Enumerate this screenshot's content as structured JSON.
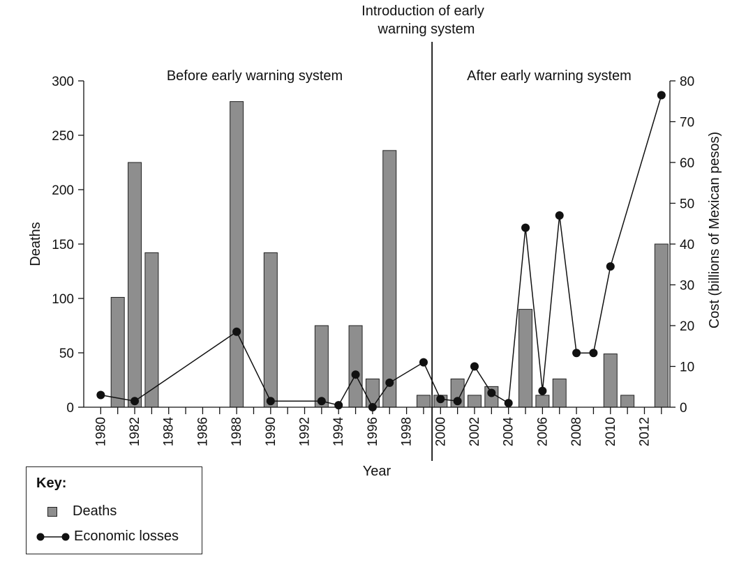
{
  "chart_data": {
    "type": "bar+line",
    "x": [
      1980,
      1981,
      1982,
      1983,
      1984,
      1985,
      1986,
      1987,
      1988,
      1989,
      1990,
      1991,
      1992,
      1993,
      1994,
      1995,
      1996,
      1997,
      1998,
      1999,
      2000,
      2001,
      2002,
      2003,
      2004,
      2005,
      2006,
      2007,
      2008,
      2009,
      2010,
      2011,
      2012,
      2013
    ],
    "x_tick_labels": [
      "1980",
      "1982",
      "1984",
      "1986",
      "1988",
      "1990",
      "1992",
      "1994",
      "1996",
      "1998",
      "2000",
      "2002",
      "2004",
      "2006",
      "2008",
      "2010",
      "2012"
    ],
    "xlabel": "Year",
    "ylabel_left": "Deaths",
    "ylabel_right": "Cost (billions of Mexican pesos)",
    "ylim_left": [
      0,
      300
    ],
    "ylim_right": [
      0,
      80
    ],
    "yticks_left": [
      "0",
      "50",
      "100",
      "150",
      "200",
      "250",
      "300"
    ],
    "yticks_right": [
      "0",
      "10",
      "20",
      "30",
      "40",
      "50",
      "60",
      "70",
      "80"
    ],
    "series": [
      {
        "name": "Deaths",
        "kind": "bar",
        "axis": "left",
        "color": "#8e8e8e",
        "points": [
          {
            "x": 1981,
            "y": 101
          },
          {
            "x": 1982,
            "y": 225
          },
          {
            "x": 1983,
            "y": 142
          },
          {
            "x": 1988,
            "y": 281
          },
          {
            "x": 1990,
            "y": 142
          },
          {
            "x": 1993,
            "y": 75
          },
          {
            "x": 1995,
            "y": 75
          },
          {
            "x": 1996,
            "y": 26
          },
          {
            "x": 1997,
            "y": 236
          },
          {
            "x": 1999,
            "y": 11
          },
          {
            "x": 2000,
            "y": 11
          },
          {
            "x": 2001,
            "y": 26
          },
          {
            "x": 2002,
            "y": 11
          },
          {
            "x": 2003,
            "y": 19
          },
          {
            "x": 2005,
            "y": 90
          },
          {
            "x": 2006,
            "y": 11
          },
          {
            "x": 2007,
            "y": 26
          },
          {
            "x": 2010,
            "y": 49
          },
          {
            "x": 2011,
            "y": 11
          },
          {
            "x": 2013,
            "y": 150
          }
        ]
      },
      {
        "name": "Economic losses",
        "kind": "line",
        "axis": "right",
        "color": "#111111",
        "points": [
          {
            "x": 1980,
            "y": 3
          },
          {
            "x": 1982,
            "y": 1.5
          },
          {
            "x": 1988,
            "y": 18.5
          },
          {
            "x": 1990,
            "y": 1.5
          },
          {
            "x": 1993,
            "y": 1.5
          },
          {
            "x": 1994,
            "y": 0.5
          },
          {
            "x": 1995,
            "y": 8
          },
          {
            "x": 1996,
            "y": 0
          },
          {
            "x": 1997,
            "y": 6
          },
          {
            "x": 1999,
            "y": 11
          },
          {
            "x": 2000,
            "y": 2
          },
          {
            "x": 2001,
            "y": 1.5
          },
          {
            "x": 2002,
            "y": 10
          },
          {
            "x": 2003,
            "y": 3.5
          },
          {
            "x": 2004,
            "y": 1
          },
          {
            "x": 2005,
            "y": 44
          },
          {
            "x": 2006,
            "y": 4
          },
          {
            "x": 2007,
            "y": 47
          },
          {
            "x": 2008,
            "y": 13.3
          },
          {
            "x": 2009,
            "y": 13.3
          },
          {
            "x": 2010,
            "y": 34.5
          },
          {
            "x": 2013,
            "y": 76.5
          }
        ]
      }
    ],
    "divider_x": 1999.5,
    "annotations": {
      "intro": [
        "Introduction of early",
        "warning system"
      ],
      "before": "Before early warning system",
      "after": "After early warning system"
    },
    "grid": false,
    "legend_position": "bottom-left"
  },
  "key": {
    "title": "Key:",
    "bar_label": "Deaths",
    "line_label": "Economic losses"
  }
}
